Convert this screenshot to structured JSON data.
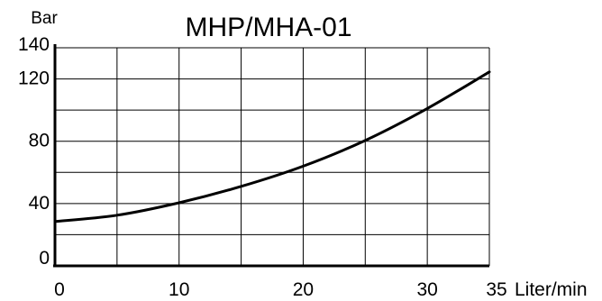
{
  "chart_data": {
    "type": "line",
    "title": "MHP/MHA-01",
    "xlabel": "Liter/min",
    "ylabel": "Bar",
    "xlim": [
      0,
      35
    ],
    "ylim": [
      0,
      140
    ],
    "x_ticks": [
      0,
      5,
      10,
      15,
      20,
      25,
      30,
      35
    ],
    "y_ticks": [
      0,
      20,
      40,
      60,
      80,
      100,
      120,
      140
    ],
    "x_tick_labels": [
      {
        "value": 0,
        "label": "0"
      },
      {
        "value": 10,
        "label": "10"
      },
      {
        "value": 20,
        "label": "20"
      },
      {
        "value": 30,
        "label": "30"
      },
      {
        "value": 35,
        "label": "35"
      }
    ],
    "y_tick_labels": [
      {
        "value": 0,
        "label": "0"
      },
      {
        "value": 40,
        "label": "40"
      },
      {
        "value": 80,
        "label": "80"
      },
      {
        "value": 120,
        "label": "120"
      },
      {
        "value": 140,
        "label": "140"
      }
    ],
    "grid": true,
    "series": [
      {
        "x": [
          0,
          5,
          10,
          15,
          20,
          25,
          30,
          35
        ],
        "values": [
          28.5,
          32.5,
          40.5,
          51,
          64,
          80.5,
          101,
          124.5
        ]
      }
    ],
    "colors": {
      "line": "#000000",
      "grid": "#000000",
      "axis": "#000000",
      "background": "#ffffff"
    }
  }
}
